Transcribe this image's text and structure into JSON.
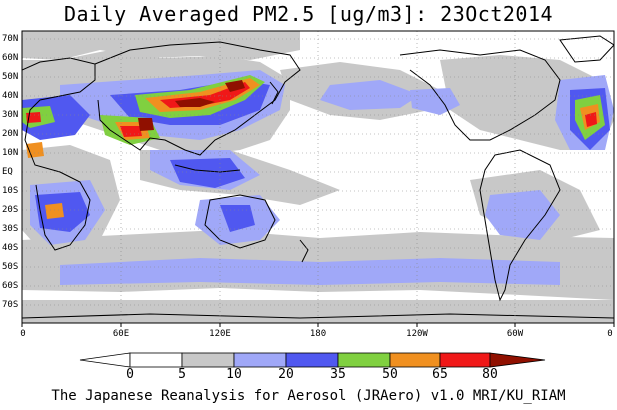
{
  "title": "Daily Averaged PM2.5 [ug/m3]: 23Oct2014",
  "footer": "The Japanese Reanalysis for Aerosol (JRAero) v1.0 MRI/KU_RIAM",
  "lat_labels": [
    "70N",
    "60N",
    "50N",
    "40N",
    "30N",
    "20N",
    "10N",
    "EQ",
    "10S",
    "20S",
    "30S",
    "40S",
    "50S",
    "60S",
    "70S"
  ],
  "lon_labels": [
    "0",
    "60E",
    "120E",
    "180",
    "120W",
    "60W",
    "0"
  ],
  "colorbar": {
    "labels": [
      "0",
      "5",
      "10",
      "20",
      "35",
      "50",
      "65",
      "80"
    ],
    "colors": [
      "#ffffff",
      "#c8c8c8",
      "#a0a8f8",
      "#5058f0",
      "#80d040",
      "#f09020",
      "#f01818",
      "#901000"
    ]
  }
}
